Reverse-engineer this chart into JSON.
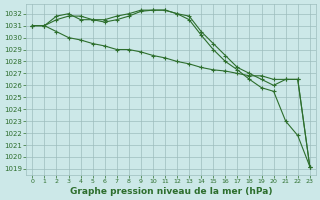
{
  "background_color": "#cce8e8",
  "grid_color": "#9dbdbd",
  "line_color": "#2d6e2d",
  "title": "Graphe pression niveau de la mer (hPa)",
  "title_fontsize": 6.5,
  "xlim": [
    -0.5,
    23.5
  ],
  "ylim": [
    1018.5,
    1032.8
  ],
  "yticks": [
    1019,
    1020,
    1021,
    1022,
    1023,
    1024,
    1025,
    1026,
    1027,
    1028,
    1029,
    1030,
    1031,
    1032
  ],
  "xticks": [
    0,
    1,
    2,
    3,
    4,
    5,
    6,
    7,
    8,
    9,
    10,
    11,
    12,
    13,
    14,
    15,
    16,
    17,
    18,
    19,
    20,
    21,
    22,
    23
  ],
  "series": [
    {
      "x": [
        0,
        1,
        2,
        3,
        4,
        5,
        6,
        7,
        8,
        9,
        10,
        11,
        12,
        13,
        14,
        15,
        16,
        17,
        18,
        19,
        20,
        21,
        22,
        23
      ],
      "y": [
        1031.0,
        1031.0,
        1031.8,
        1032.0,
        1031.5,
        1031.5,
        1031.3,
        1031.5,
        1031.8,
        1032.2,
        1032.3,
        1032.3,
        1032.0,
        1031.5,
        1030.2,
        1029.0,
        1028.0,
        1027.3,
        1026.5,
        1025.8,
        1025.5,
        1023.0,
        1021.8,
        1019.2
      ]
    },
    {
      "x": [
        0,
        1,
        2,
        3,
        4,
        5,
        6,
        7,
        8,
        9,
        10,
        11,
        12,
        13,
        14,
        15,
        16,
        17,
        18,
        19,
        20,
        21,
        22,
        23
      ],
      "y": [
        1031.0,
        1031.0,
        1031.5,
        1031.8,
        1031.8,
        1031.5,
        1031.5,
        1031.8,
        1032.0,
        1032.3,
        1032.3,
        1032.3,
        1032.0,
        1031.8,
        1030.5,
        1029.5,
        1028.5,
        1027.5,
        1027.0,
        1026.5,
        1026.0,
        1026.5,
        1026.5,
        1019.2
      ]
    },
    {
      "x": [
        0,
        1,
        2,
        3,
        4,
        5,
        6,
        7,
        8,
        9,
        10,
        11,
        12,
        13,
        14,
        15,
        16,
        17,
        18,
        19,
        20,
        21,
        22,
        23
      ],
      "y": [
        1031.0,
        1031.0,
        1030.5,
        1030.0,
        1029.8,
        1029.5,
        1029.3,
        1029.0,
        1029.0,
        1028.8,
        1028.5,
        1028.3,
        1028.0,
        1027.8,
        1027.5,
        1027.3,
        1027.2,
        1027.0,
        1026.8,
        1026.8,
        1026.5,
        1026.5,
        1026.5,
        1019.2
      ]
    }
  ]
}
